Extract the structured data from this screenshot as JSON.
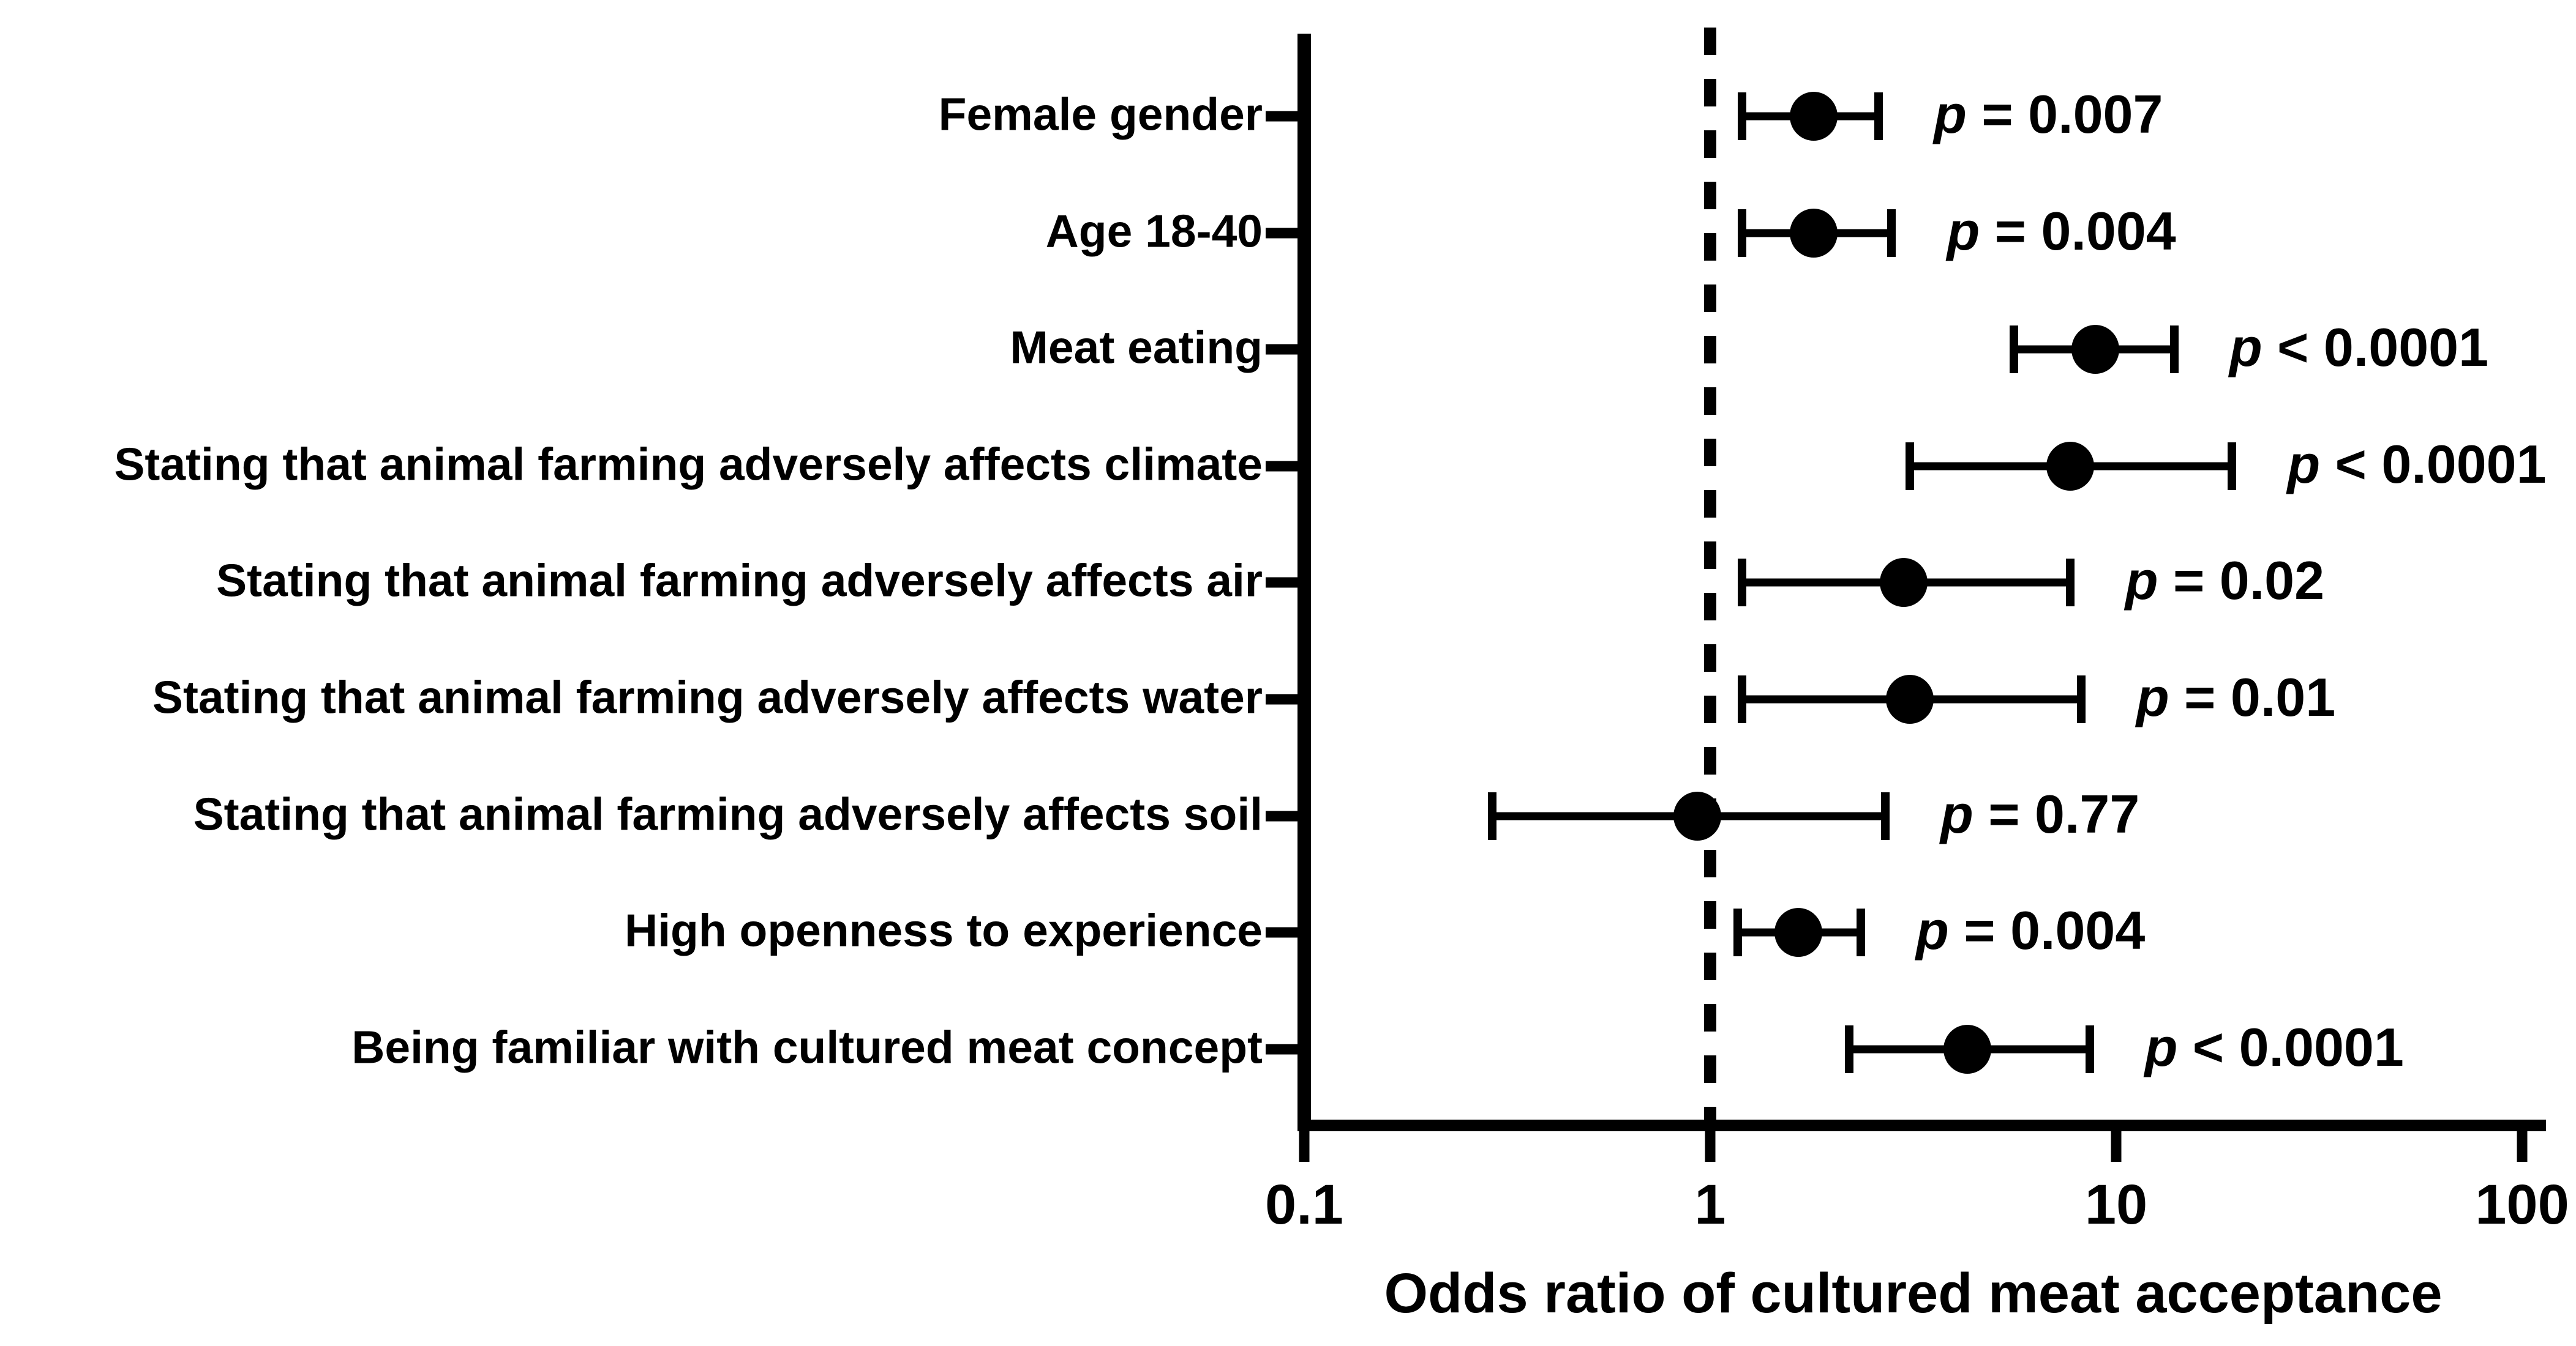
{
  "colors": {
    "background": "#ffffff",
    "ink": "#000000"
  },
  "chart_data": {
    "type": "scatter",
    "subtype": "forest-plot-odds-ratios",
    "title": "",
    "xlabel": "Odds ratio of cultured meat acceptance",
    "ylabel": "",
    "x_scale": "log10",
    "xlim": [
      0.1,
      100
    ],
    "x_ticks": [
      0.1,
      1,
      10,
      100
    ],
    "x_tick_labels": [
      "0.1",
      "1",
      "10",
      "100"
    ],
    "reference_line_x": 1,
    "reference_line_style": "dashed",
    "grid": false,
    "legend": false,
    "rows": [
      {
        "label": "Female gender",
        "or": 1.8,
        "ci_low": 1.2,
        "ci_high": 2.6,
        "p_label": "p = 0.007"
      },
      {
        "label": "Age 18-40",
        "or": 1.8,
        "ci_low": 1.2,
        "ci_high": 2.8,
        "p_label": "p = 0.004"
      },
      {
        "label": "Meat eating",
        "or": 8.9,
        "ci_low": 5.6,
        "ci_high": 13.9,
        "p_label": "p < 0.0001"
      },
      {
        "label": "Stating that animal farming adversely affects climate",
        "or": 7.7,
        "ci_low": 3.1,
        "ci_high": 19.3,
        "p_label": "p < 0.0001"
      },
      {
        "label": "Stating that animal farming adversely affects air",
        "or": 3.0,
        "ci_low": 1.2,
        "ci_high": 7.7,
        "p_label": "p = 0.02"
      },
      {
        "label": "Stating that animal farming adversely affects water",
        "or": 3.1,
        "ci_low": 1.2,
        "ci_high": 8.2,
        "p_label": "p = 0.01"
      },
      {
        "label": "Stating that animal farming adversely affects soil",
        "or": 0.93,
        "ci_low": 0.29,
        "ci_high": 2.7,
        "p_label": "p = 0.77"
      },
      {
        "label": "High openness to experience",
        "or": 1.65,
        "ci_low": 1.17,
        "ci_high": 2.35,
        "p_label": "p = 0.004"
      },
      {
        "label": "Being familiar with cultured meat concept",
        "or": 4.3,
        "ci_low": 2.2,
        "ci_high": 8.6,
        "p_label": "p < 0.0001"
      }
    ]
  }
}
